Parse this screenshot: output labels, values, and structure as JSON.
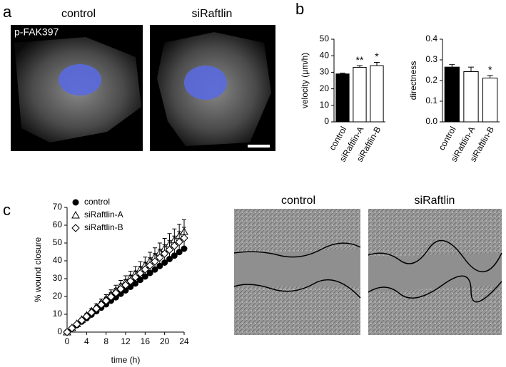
{
  "panel_labels": [
    "a",
    "b",
    "c"
  ],
  "micrographs": {
    "titles": [
      "control",
      "siRaftlin"
    ],
    "stain": "p-FAK397"
  },
  "wound_images": {
    "titles": [
      "control",
      "siRaftlin"
    ]
  },
  "chart_data": [
    {
      "type": "bar",
      "ylabel": "velocity (µm/h)",
      "categories": [
        "control",
        "siRaftlin-A",
        "siRaftlin-B"
      ],
      "values": [
        29,
        33,
        34
      ],
      "errors": [
        0.5,
        1,
        2
      ],
      "colors": [
        "#000000",
        "#ffffff",
        "#ffffff"
      ],
      "annotations": [
        {
          "category": "siRaftlin-A",
          "text": "**"
        },
        {
          "category": "siRaftlin-B",
          "text": "*"
        }
      ],
      "ylim": [
        0,
        50
      ],
      "yticks": [
        0,
        10,
        20,
        30,
        40,
        50
      ]
    },
    {
      "type": "bar",
      "ylabel": "directness",
      "categories": [
        "control",
        "siRaftlin-A",
        "siRaftlin-B"
      ],
      "values": [
        0.265,
        0.243,
        0.212
      ],
      "errors": [
        0.012,
        0.022,
        0.012
      ],
      "colors": [
        "#000000",
        "#ffffff",
        "#ffffff"
      ],
      "annotations": [
        {
          "category": "siRaftlin-B",
          "text": "*"
        }
      ],
      "ylim": [
        0,
        0.4
      ],
      "yticks": [
        {
          "value": 0,
          "label": "0.0"
        },
        0.1,
        0.2,
        0.3,
        0.4
      ]
    },
    {
      "type": "line",
      "xlabel": "time (h)",
      "ylabel": "% wound closure",
      "x": [
        0,
        1,
        2,
        3,
        4,
        5,
        6,
        7,
        8,
        9,
        10,
        11,
        12,
        13,
        14,
        15,
        16,
        17,
        18,
        19,
        20,
        21,
        22,
        23,
        24
      ],
      "series": [
        {
          "name": "control",
          "marker": "circle",
          "color": "#000000",
          "values": [
            0,
            2,
            3.9,
            5.9,
            7.8,
            9.8,
            11.7,
            13.7,
            15.6,
            17.6,
            19.5,
            21.5,
            23.4,
            25.4,
            27.3,
            29.3,
            31.2,
            33.2,
            35.1,
            37.1,
            39,
            41,
            42.9,
            44.9,
            46.8
          ],
          "errors": [
            0,
            0.2,
            0.4,
            0.6,
            0.8,
            1,
            1.2,
            1.4,
            1.6,
            1.8,
            2,
            2.2,
            2.4,
            2.6,
            2.8,
            3,
            3.2,
            3.4,
            3.6,
            3.8,
            4,
            4.2,
            4.4,
            4.6,
            4.8
          ]
        },
        {
          "name": "siRaftlin-A",
          "marker": "triangle",
          "color": "#000000",
          "values": [
            0,
            2.4,
            4.7,
            7.1,
            9.4,
            11.8,
            14.1,
            16.5,
            18.8,
            21.2,
            23.5,
            25.9,
            28.2,
            30.6,
            32.9,
            35.3,
            37.6,
            40,
            42.3,
            44.7,
            47,
            49.4,
            51.7,
            54.1,
            56.4
          ],
          "errors": [
            0,
            0.3,
            0.6,
            0.8,
            1.1,
            1.4,
            1.7,
            2,
            2.2,
            2.5,
            2.8,
            3.1,
            3.4,
            3.6,
            3.9,
            4.2,
            4.5,
            4.8,
            5,
            5.3,
            5.6,
            5.9,
            6.2,
            6.4,
            6.7
          ]
        },
        {
          "name": "siRaftlin-B",
          "marker": "diamond",
          "color": "#000000",
          "values": [
            0,
            2.2,
            4.4,
            6.6,
            8.8,
            11,
            13.2,
            15.4,
            17.6,
            19.8,
            22,
            24.2,
            26.4,
            28.6,
            30.8,
            33,
            35.2,
            37.4,
            39.6,
            41.8,
            44,
            46.2,
            48.4,
            50.6,
            52.8
          ],
          "errors": [
            0,
            0.3,
            0.5,
            0.8,
            1,
            1.3,
            1.5,
            1.8,
            2,
            2.3,
            2.5,
            2.8,
            3,
            3.3,
            3.5,
            3.8,
            4,
            4.3,
            4.5,
            4.8,
            5,
            5.3,
            5.5,
            5.8,
            6
          ]
        }
      ],
      "xlim": [
        0,
        24
      ],
      "xticks": [
        0,
        4,
        8,
        12,
        16,
        20,
        24
      ],
      "ylim": [
        0,
        70
      ],
      "yticks": [
        0,
        10,
        20,
        30,
        40,
        50,
        60,
        70
      ],
      "legend": "upper left"
    }
  ]
}
